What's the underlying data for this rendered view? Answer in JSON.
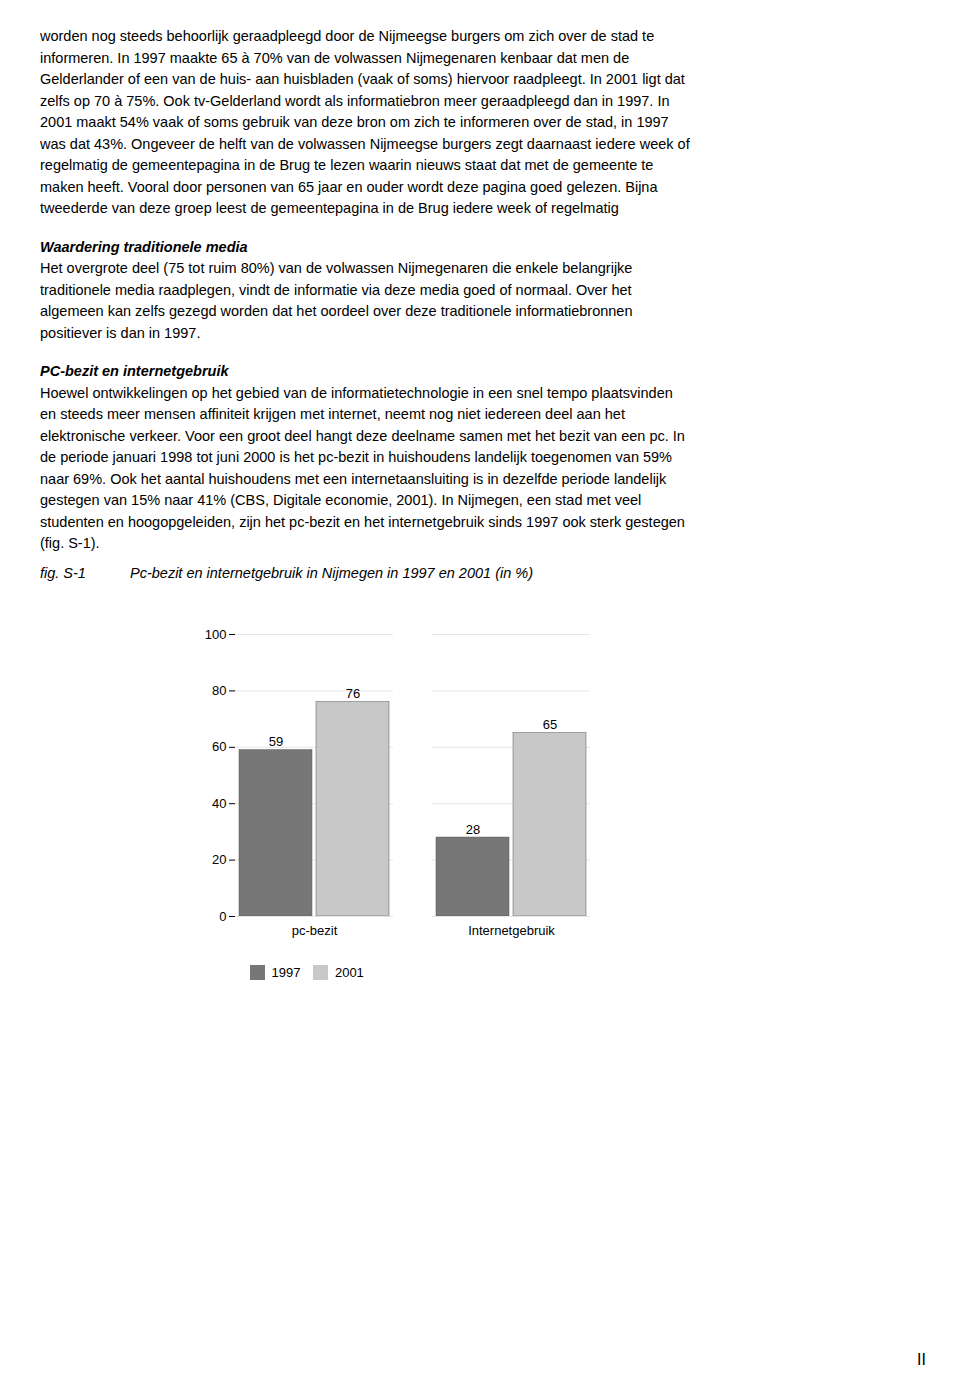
{
  "chart_data": {
    "type": "bar",
    "title": "Pc-bezit en internetgebruik in Nijmegen in 1997 en 2001 (in %)",
    "annotations": {
      "figure_label": "fig. S-1",
      "page_number": "II",
      "paragraphs": [
        {
          "lines": [
            "worden nog steeds behoorlijk geraadpleegd door de Nijmeegse burgers om zich over de stad te",
            "informeren. In 1997 maakte 65 à 70% van de volwassen Nijmegenaren kenbaar dat men de",
            "Gelderlander of een van de huis- aan huisbladen (vaak of soms) hiervoor raadpleegt. In 2001 ligt dat",
            "zelfs op 70 à 75%. Ook tv-Gelderland wordt als informatiebron meer geraadpleegd dan in 1997. In",
            "2001 maakt 54% vaak of soms gebruik van deze bron om zich te informeren over de stad, in 1997",
            "was dat 43%. Ongeveer de helft van de volwassen Nijmeegse burgers zegt daarnaast iedere week of",
            "regelmatig de gemeentepagina in de Brug te lezen waarin nieuws staat dat met de gemeente te",
            "maken heeft. Vooral door personen van 65 jaar en ouder wordt deze pagina goed gelezen. Bijna",
            "tweederde van deze groep leest de gemeentepagina in de Brug iedere week of regelmatig"
          ]
        },
        {
          "heading": "Waardering traditionele media",
          "lines": [
            "Het overgrote deel (75 tot ruim 80%) van de volwassen Nijmegenaren die enkele belangrijke",
            "traditionele media raadplegen, vindt de informatie via deze media goed of normaal. Over het",
            "algemeen kan zelfs gezegd worden dat het oordeel over deze traditionele informatiebronnen",
            "positiever is dan in 1997."
          ]
        },
        {
          "heading": "PC-bezit en internetgebruik",
          "lines": [
            "Hoewel ontwikkelingen op het gebied van de informatietechnologie in een snel tempo plaatsvinden",
            "en steeds meer mensen affiniteit krijgen met internet, neemt nog niet iedereen deel aan het",
            "elektronische verkeer. Voor een groot deel hangt deze deelname samen met het bezit van een pc. In",
            "de periode januari 1998 tot juni 2000 is het pc-bezit in huishoudens landelijk toegenomen van 59%",
            "naar 69%. Ook het aantal huishoudens met een internetaansluiting is in dezelfde periode landelijk",
            "gestegen van 15% naar 41% (CBS, Digitale economie, 2001). In Nijmegen, een stad met veel",
            "studenten en hoogopgeleiden, zijn het pc-bezit en het internetgebruik sinds 1997 ook sterk gestegen",
            "(fig. S-1)."
          ]
        }
      ]
    },
    "categories": [
      "pc-bezit",
      "Internetgebruik"
    ],
    "series": [
      {
        "name": "1997",
        "color": "#777777",
        "values": [
          59,
          28
        ]
      },
      {
        "name": "2001",
        "color": "#c8c8c8",
        "values": [
          76,
          65
        ]
      }
    ],
    "ylim": [
      0,
      100
    ],
    "yticks": [
      0,
      20,
      40,
      60,
      80,
      100
    ],
    "grid": true,
    "data_labels": true,
    "legend": "bottom"
  }
}
